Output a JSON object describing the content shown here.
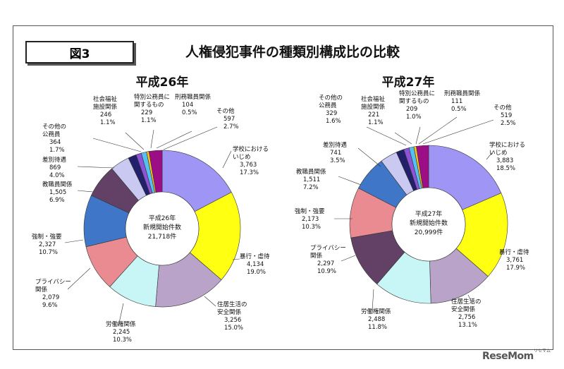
{
  "figure_label": "図3",
  "title": "人権侵犯事件の種類別構成比の比較",
  "credit": "ReseMom",
  "credit_sub": "リセマム",
  "chart_data": [
    {
      "type": "pie",
      "subtitle": "平成26年",
      "center_text": [
        "平成26年",
        "新規開始件数",
        "21,718件"
      ],
      "slices": [
        {
          "label": [
            "学校における",
            "いじめ"
          ],
          "count": "3,763",
          "percent": "17.3%",
          "value": 17.3,
          "color": "#9f95f5"
        },
        {
          "label": [
            "暴行・虐待"
          ],
          "count": "4,134",
          "percent": "19.0%",
          "value": 19.0,
          "color": "#ffff11"
        },
        {
          "label": [
            "住居生活の",
            "安全関係"
          ],
          "count": "3,256",
          "percent": "15.0%",
          "value": 15.0,
          "color": "#b9a3c8"
        },
        {
          "label": [
            "労働権関係"
          ],
          "count": "2,245",
          "percent": "10.3%",
          "value": 10.3,
          "color": "#c8f6f6"
        },
        {
          "label": [
            "プライバシー",
            "関係"
          ],
          "count": "2,079",
          "percent": "9.6%",
          "value": 9.6,
          "color": "#e98b91"
        },
        {
          "label": [
            "強制・強要"
          ],
          "count": "2,327",
          "percent": "10.7%",
          "value": 10.7,
          "color": "#3f76c7"
        },
        {
          "label": [
            "教職員関係"
          ],
          "count": "1,505",
          "percent": "6.9%",
          "value": 6.9,
          "color": "#634066"
        },
        {
          "label": [
            "差別待遇"
          ],
          "count": "869",
          "percent": "4.0%",
          "value": 4.0,
          "color": "#c9c9f1"
        },
        {
          "label": [
            "その他の",
            "公務員"
          ],
          "count": "364",
          "percent": "1.7%",
          "value": 1.7,
          "color": "#22206a"
        },
        {
          "label": [
            "社会福祉",
            "施設関係"
          ],
          "count": "246",
          "percent": "1.1%",
          "value": 1.1,
          "color": "#8d53d8"
        },
        {
          "label": [
            "特別公務員に",
            "関するもの"
          ],
          "count": "229",
          "percent": "1.1%",
          "value": 1.1,
          "color": "#55c0f0"
        },
        {
          "label": [
            "刑務職員関係"
          ],
          "count": "104",
          "percent": "0.5%",
          "value": 0.5,
          "color": "#ffc21c"
        },
        {
          "label": [
            "その他"
          ],
          "count": "597",
          "percent": "2.7%",
          "value": 2.7,
          "color": "#9b0e86"
        }
      ]
    },
    {
      "type": "pie",
      "subtitle": "平成27年",
      "center_text": [
        "平成27年",
        "新規開始件数",
        "20,999件"
      ],
      "slices": [
        {
          "label": [
            "学校における",
            "いじめ"
          ],
          "count": "3,883",
          "percent": "18.5%",
          "value": 18.5,
          "color": "#9f95f5"
        },
        {
          "label": [
            "暴行・虐待"
          ],
          "count": "3,761",
          "percent": "17.9%",
          "value": 17.9,
          "color": "#ffff11"
        },
        {
          "label": [
            "住居生活の",
            "安全関係"
          ],
          "count": "2,756",
          "percent": "13.1%",
          "value": 13.1,
          "color": "#b9a3c8"
        },
        {
          "label": [
            "労働権関係"
          ],
          "count": "2,488",
          "percent": "11.8%",
          "value": 11.8,
          "color": "#c8f6f6"
        },
        {
          "label": [
            "プライバシー",
            "関係"
          ],
          "count": "2,297",
          "percent": "10.9%",
          "value": 10.9,
          "color": "#634066"
        },
        {
          "label": [
            "強制・強要"
          ],
          "count": "2,173",
          "percent": "10.3%",
          "value": 10.3,
          "color": "#e98b91"
        },
        {
          "label": [
            "教職員関係"
          ],
          "count": "1,511",
          "percent": "7.2%",
          "value": 7.2,
          "color": "#3f76c7"
        },
        {
          "label": [
            "差別待遇"
          ],
          "count": "741",
          "percent": "3.5%",
          "value": 3.5,
          "color": "#c9c9f1"
        },
        {
          "label": [
            "その他の",
            "公務員"
          ],
          "count": "329",
          "percent": "1.6%",
          "value": 1.6,
          "color": "#22206a"
        },
        {
          "label": [
            "社会福祉",
            "施設関係"
          ],
          "count": "221",
          "percent": "1.1%",
          "value": 1.1,
          "color": "#8d53d8"
        },
        {
          "label": [
            "特別公務員に",
            "関するもの"
          ],
          "count": "209",
          "percent": "1.0%",
          "value": 1.0,
          "color": "#55c0f0"
        },
        {
          "label": [
            "刑務職員関係"
          ],
          "count": "111",
          "percent": "0.5%",
          "value": 0.5,
          "color": "#ffc21c"
        },
        {
          "label": [
            "その他"
          ],
          "count": "519",
          "percent": "2.5%",
          "value": 2.5,
          "color": "#9b0e86"
        }
      ]
    }
  ]
}
